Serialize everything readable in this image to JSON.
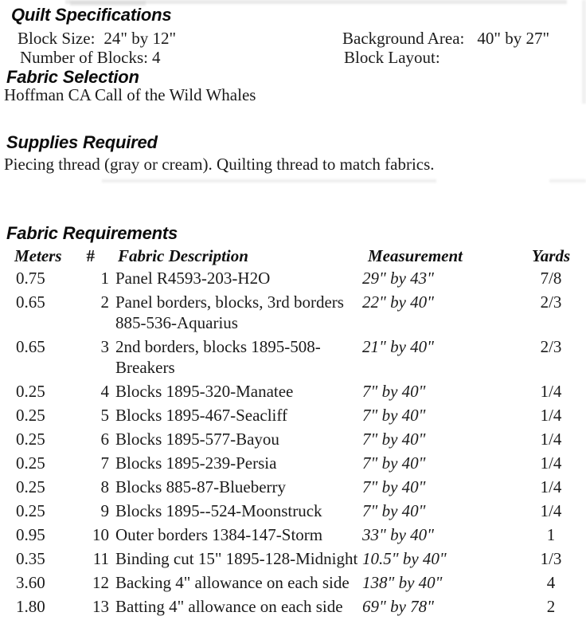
{
  "quilt_specifications": {
    "heading": "Quilt Specifications",
    "items": [
      {
        "label": "Block Size:",
        "value": "24\" by 12\""
      },
      {
        "label": "Number of Blocks:",
        "value": "4"
      },
      {
        "label": "Background Area:",
        "value": "40\" by 27\""
      },
      {
        "label": "Block Layout:",
        "value": ""
      }
    ]
  },
  "fabric_selection": {
    "heading": "Fabric Selection",
    "text": "Hoffman CA Call of the Wild Whales"
  },
  "supplies_required": {
    "heading": "Supplies Required",
    "text": "Piecing thread (gray or cream). Quilting thread to match fabrics."
  },
  "fabric_requirements": {
    "heading": "Fabric Requirements",
    "columns": [
      "Meters",
      "#",
      "Fabric Description",
      "Measurement",
      "Yards"
    ],
    "rows": [
      {
        "meters": "0.75",
        "num": "1",
        "description": "Panel R4593-203-H2O",
        "measurement": "29\" by 43\"",
        "yards": "7/8"
      },
      {
        "meters": "0.65",
        "num": "2",
        "description": "Panel borders, blocks, 3rd borders\n885-536-Aquarius",
        "measurement": "22\" by 40\"",
        "yards": "2/3"
      },
      {
        "meters": "0.65",
        "num": "3",
        "description": "2nd borders, blocks 1895-508-\nBreakers",
        "measurement": "21\" by 40\"",
        "yards": "2/3"
      },
      {
        "meters": "0.25",
        "num": "4",
        "description": "Blocks 1895-320-Manatee",
        "measurement": "7\" by 40\"",
        "yards": "1/4"
      },
      {
        "meters": "0.25",
        "num": "5",
        "description": "Blocks 1895-467-Seacliff",
        "measurement": "7\" by 40\"",
        "yards": "1/4"
      },
      {
        "meters": "0.25",
        "num": "6",
        "description": "Blocks 1895-577-Bayou",
        "measurement": "7\" by 40\"",
        "yards": "1/4"
      },
      {
        "meters": "0.25",
        "num": "7",
        "description": "Blocks 1895-239-Persia",
        "measurement": "7\" by 40\"",
        "yards": "1/4"
      },
      {
        "meters": "0.25",
        "num": "8",
        "description": "Blocks 885-87-Blueberry",
        "measurement": "7\" by 40\"",
        "yards": "1/4"
      },
      {
        "meters": "0.25",
        "num": "9",
        "description": "Blocks 1895--524-Moonstruck",
        "measurement": "7\" by 40\"",
        "yards": "1/4"
      },
      {
        "meters": "0.95",
        "num": "10",
        "description": "Outer borders 1384-147-Storm",
        "measurement": "33\" by 40\"",
        "yards": "1"
      },
      {
        "meters": "0.35",
        "num": "11",
        "description": "Binding cut 15\" 1895-128-Midnight",
        "measurement": "10.5\" by 40\"",
        "yards": "1/3"
      },
      {
        "meters": "3.60",
        "num": "12",
        "description": "Backing 4\" allowance on each side",
        "measurement": "138\" by 40\"",
        "yards": "4"
      },
      {
        "meters": "1.80",
        "num": "13",
        "description": "Batting 4\" allowance on each side",
        "measurement": "69\" by 78\"",
        "yards": "2"
      }
    ]
  },
  "colors": {
    "text": "#1b1b1b",
    "background": "#ffffff",
    "scan_artifact": "#d7d7d7"
  }
}
